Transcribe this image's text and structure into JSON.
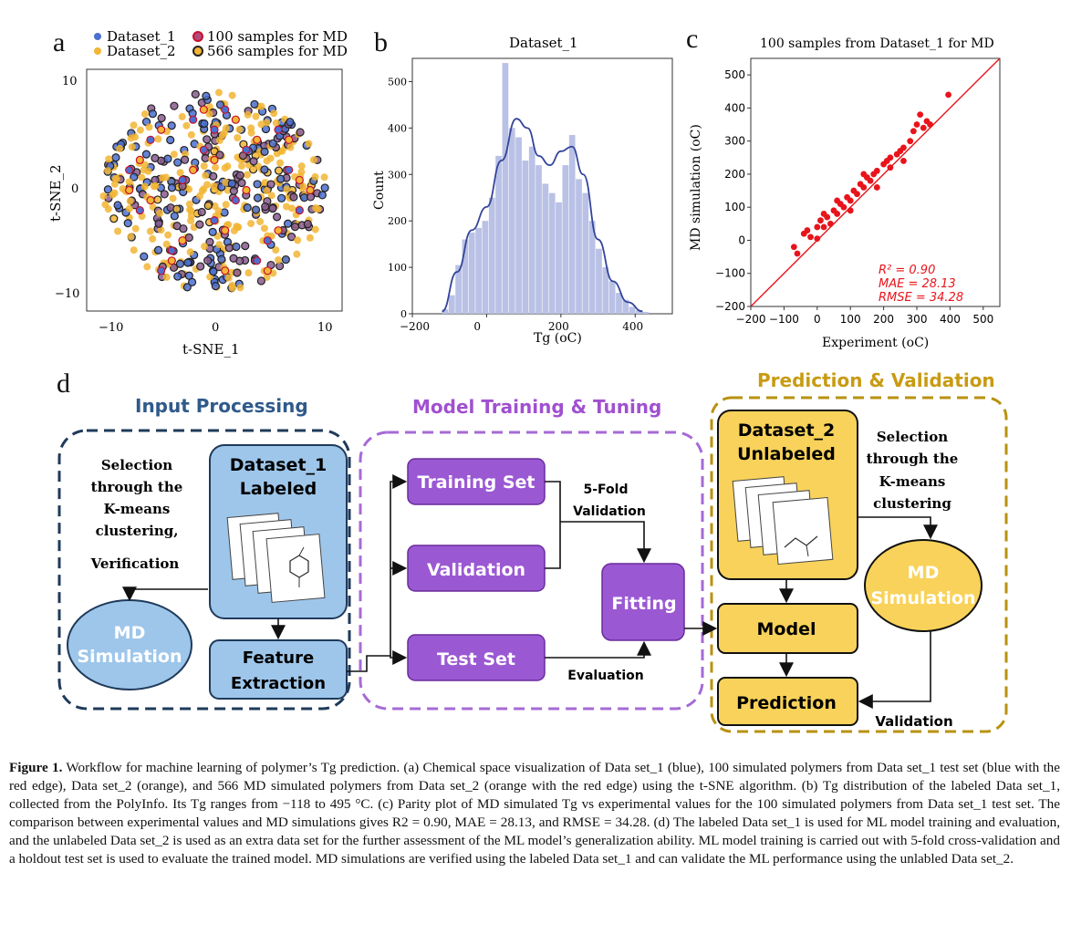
{
  "panels": {
    "a_letter": "a",
    "b_letter": "b",
    "c_letter": "c",
    "d_letter": "d"
  },
  "colors": {
    "dataset1_blue": "#4a6fd1",
    "dataset2_orange": "#f2b534",
    "md_red_edge": "#c8102e",
    "hist_fill": "#b9c1e6",
    "kde_line": "#34449a",
    "parity_red": "#e8141b",
    "input_blue_border": "#1f3a5a",
    "input_blue_fill": "#9ec6ea",
    "purple_border": "#a66ad6",
    "purple_fill": "#9b58d3",
    "gold_border": "#b8920f",
    "gold_fill": "#f8d25a",
    "gold_title": "#c89b12",
    "input_title": "#2f5a8a",
    "training_title": "#a050d0"
  },
  "chart_data": [
    {
      "type": "scatter",
      "legend": [
        "Dataset_1",
        "Dataset_2",
        "100 samples for MD",
        "566 samples for MD"
      ],
      "xlabel": "t-SNE_1",
      "ylabel": "t-SNE_2",
      "xlim": [
        -12,
        12
      ],
      "ylim": [
        -12,
        12
      ],
      "xticks": [
        "−10",
        "0",
        "10"
      ],
      "yticks": [
        "10",
        "0",
        "−10"
      ],
      "series": [
        {
          "name": "Dataset_1",
          "color": "#4a6fd1",
          "points": [
            [
              -8,
              2
            ],
            [
              -6,
              5
            ],
            [
              -4,
              -6
            ],
            [
              -2,
              7
            ],
            [
              0,
              -3
            ],
            [
              3,
              4
            ],
            [
              5,
              -5
            ],
            [
              7,
              2
            ],
            [
              -7,
              -2
            ],
            [
              1,
              8
            ],
            [
              4,
              -7
            ],
            [
              -3,
              1
            ],
            [
              6,
              6
            ],
            [
              -5,
              -8
            ],
            [
              2,
              -1
            ],
            [
              8,
              -2
            ],
            [
              -1,
              4
            ],
            [
              0,
              6
            ]
          ]
        },
        {
          "name": "Dataset_2",
          "color": "#f2b534",
          "points": [
            [
              -7,
              3
            ],
            [
              -5,
              6
            ],
            [
              -3,
              -5
            ],
            [
              -1,
              8
            ],
            [
              1,
              -4
            ],
            [
              4,
              5
            ],
            [
              6,
              -4
            ],
            [
              8,
              1
            ],
            [
              -6,
              -1
            ],
            [
              2,
              7
            ],
            [
              5,
              -8
            ],
            [
              -2,
              2
            ],
            [
              7,
              5
            ],
            [
              -4,
              -7
            ],
            [
              3,
              0
            ],
            [
              9,
              0
            ],
            [
              0,
              3
            ],
            [
              -8,
              0
            ],
            [
              1,
              -8
            ]
          ]
        }
      ]
    },
    {
      "type": "bar",
      "title": "Dataset_1",
      "xlabel": "Tg (oC)",
      "ylabel": "Count",
      "xlim": [
        -200,
        500
      ],
      "ylim": [
        0,
        550
      ],
      "xticks": [
        "−200",
        "0",
        "200",
        "400"
      ],
      "yticks": [
        "0",
        "100",
        "200",
        "300",
        "400",
        "500"
      ],
      "bin_width": 18,
      "bin_starts": [
        -120,
        -102,
        -84,
        -66,
        -48,
        -30,
        -12,
        6,
        24,
        42,
        60,
        78,
        96,
        114,
        132,
        150,
        168,
        186,
        204,
        222,
        240,
        258,
        276,
        294,
        312,
        330,
        348,
        366,
        384,
        402,
        420
      ],
      "values": [
        10,
        40,
        105,
        160,
        175,
        185,
        200,
        250,
        340,
        540,
        400,
        380,
        330,
        360,
        320,
        280,
        260,
        240,
        320,
        385,
        290,
        260,
        200,
        140,
        100,
        70,
        45,
        30,
        15,
        8,
        4
      ],
      "kde": [
        [
          -120,
          5
        ],
        [
          -80,
          90
        ],
        [
          -40,
          180
        ],
        [
          0,
          230
        ],
        [
          40,
          330
        ],
        [
          80,
          420
        ],
        [
          110,
          400
        ],
        [
          140,
          340
        ],
        [
          170,
          320
        ],
        [
          200,
          350
        ],
        [
          230,
          360
        ],
        [
          260,
          300
        ],
        [
          300,
          160
        ],
        [
          340,
          70
        ],
        [
          380,
          25
        ],
        [
          420,
          5
        ]
      ]
    },
    {
      "type": "scatter",
      "title": "100 samples from Dataset_1 for MD",
      "xlabel": "Experiment (oC)",
      "ylabel": "MD simulation (oC)",
      "xlim": [
        -200,
        550
      ],
      "ylim": [
        -200,
        550
      ],
      "xticks": [
        "−200",
        "−100",
        "0",
        "100",
        "200",
        "300",
        "400",
        "500"
      ],
      "yticks": [
        "−200",
        "−100",
        "0",
        "100",
        "200",
        "300",
        "400",
        "500"
      ],
      "stats": [
        "R² = 0.90",
        "MAE = 28.13",
        "RMSE = 34.28"
      ],
      "points": [
        [
          -70,
          -20
        ],
        [
          -60,
          -40
        ],
        [
          -40,
          20
        ],
        [
          -30,
          30
        ],
        [
          -20,
          10
        ],
        [
          0,
          40
        ],
        [
          10,
          60
        ],
        [
          20,
          40
        ],
        [
          30,
          70
        ],
        [
          40,
          50
        ],
        [
          50,
          90
        ],
        [
          60,
          80
        ],
        [
          70,
          110
        ],
        [
          80,
          100
        ],
        [
          90,
          130
        ],
        [
          100,
          120
        ],
        [
          110,
          150
        ],
        [
          120,
          140
        ],
        [
          130,
          170
        ],
        [
          140,
          160
        ],
        [
          150,
          190
        ],
        [
          160,
          180
        ],
        [
          170,
          200
        ],
        [
          180,
          210
        ],
        [
          200,
          230
        ],
        [
          210,
          240
        ],
        [
          220,
          220
        ],
        [
          240,
          260
        ],
        [
          250,
          270
        ],
        [
          260,
          280
        ],
        [
          280,
          300
        ],
        [
          290,
          330
        ],
        [
          300,
          350
        ],
        [
          310,
          380
        ],
        [
          320,
          340
        ],
        [
          330,
          360
        ],
        [
          340,
          350
        ],
        [
          395,
          440
        ],
        [
          0,
          5
        ],
        [
          20,
          80
        ],
        [
          60,
          120
        ],
        [
          100,
          90
        ],
        [
          140,
          200
        ],
        [
          180,
          160
        ],
        [
          220,
          250
        ],
        [
          260,
          240
        ]
      ]
    }
  ],
  "diagram": {
    "input_title": "Input Processing",
    "training_title": "Model Training & Tuning",
    "prediction_title": "Prediction & Validation",
    "dataset1_line1": "Dataset_1",
    "dataset1_line2": "Labeled",
    "selection_left": [
      "Selection",
      "through the",
      "K-means",
      "clustering,",
      "Verification"
    ],
    "md_sim_left": [
      "MD",
      "Simulation"
    ],
    "feature_extraction": [
      "Feature",
      "Extraction"
    ],
    "training_set": "Training Set",
    "validation": "Validation",
    "test_set": "Test Set",
    "fivefold": [
      "5-Fold",
      "Validation"
    ],
    "fitting": "Fitting",
    "evaluation": "Evaluation",
    "dataset2_line1": "Dataset_2",
    "dataset2_line2": "Unlabeled",
    "selection_right": [
      "Selection",
      "through the",
      "K-means",
      "clustering"
    ],
    "md_sim_right": [
      "MD",
      "Simulation"
    ],
    "model": "Model",
    "prediction": "Prediction",
    "validation_label": "Validation"
  },
  "caption": {
    "lead": "Figure 1.",
    "text": " Workflow for machine learning of polymer’s Tg prediction. (a) Chemical space visualization of Data set_1 (blue), 100 simulated polymers from Data set_1 test set (blue with the red edge), Data set_2 (orange), and 566 MD simulated polymers from Data set_2 (orange with the red edge) using the t-SNE algorithm. (b) Tg distribution of the labeled Data set_1, collected from the PolyInfo. Its Tg ranges from −118 to 495 °C. (c) Parity plot of MD simulated Tg vs experimental values for the 100 simulated polymers from Data set_1 test set. The comparison between experimental values and MD simulations gives R2 = 0.90, MAE = 28.13, and RMSE = 34.28. (d) The labeled Data set_1 is used for ML model training and evaluation, and the unlabeled Data set_2 is used as an extra data set for the further assessment of the ML model’s generalization ability. ML model training is carried out with 5-fold cross-validation and a holdout test set is used to evaluate the trained model. MD simulations are verified using the labeled Data set_1 and can validate the ML performance using the unlabled Data set_2."
  }
}
